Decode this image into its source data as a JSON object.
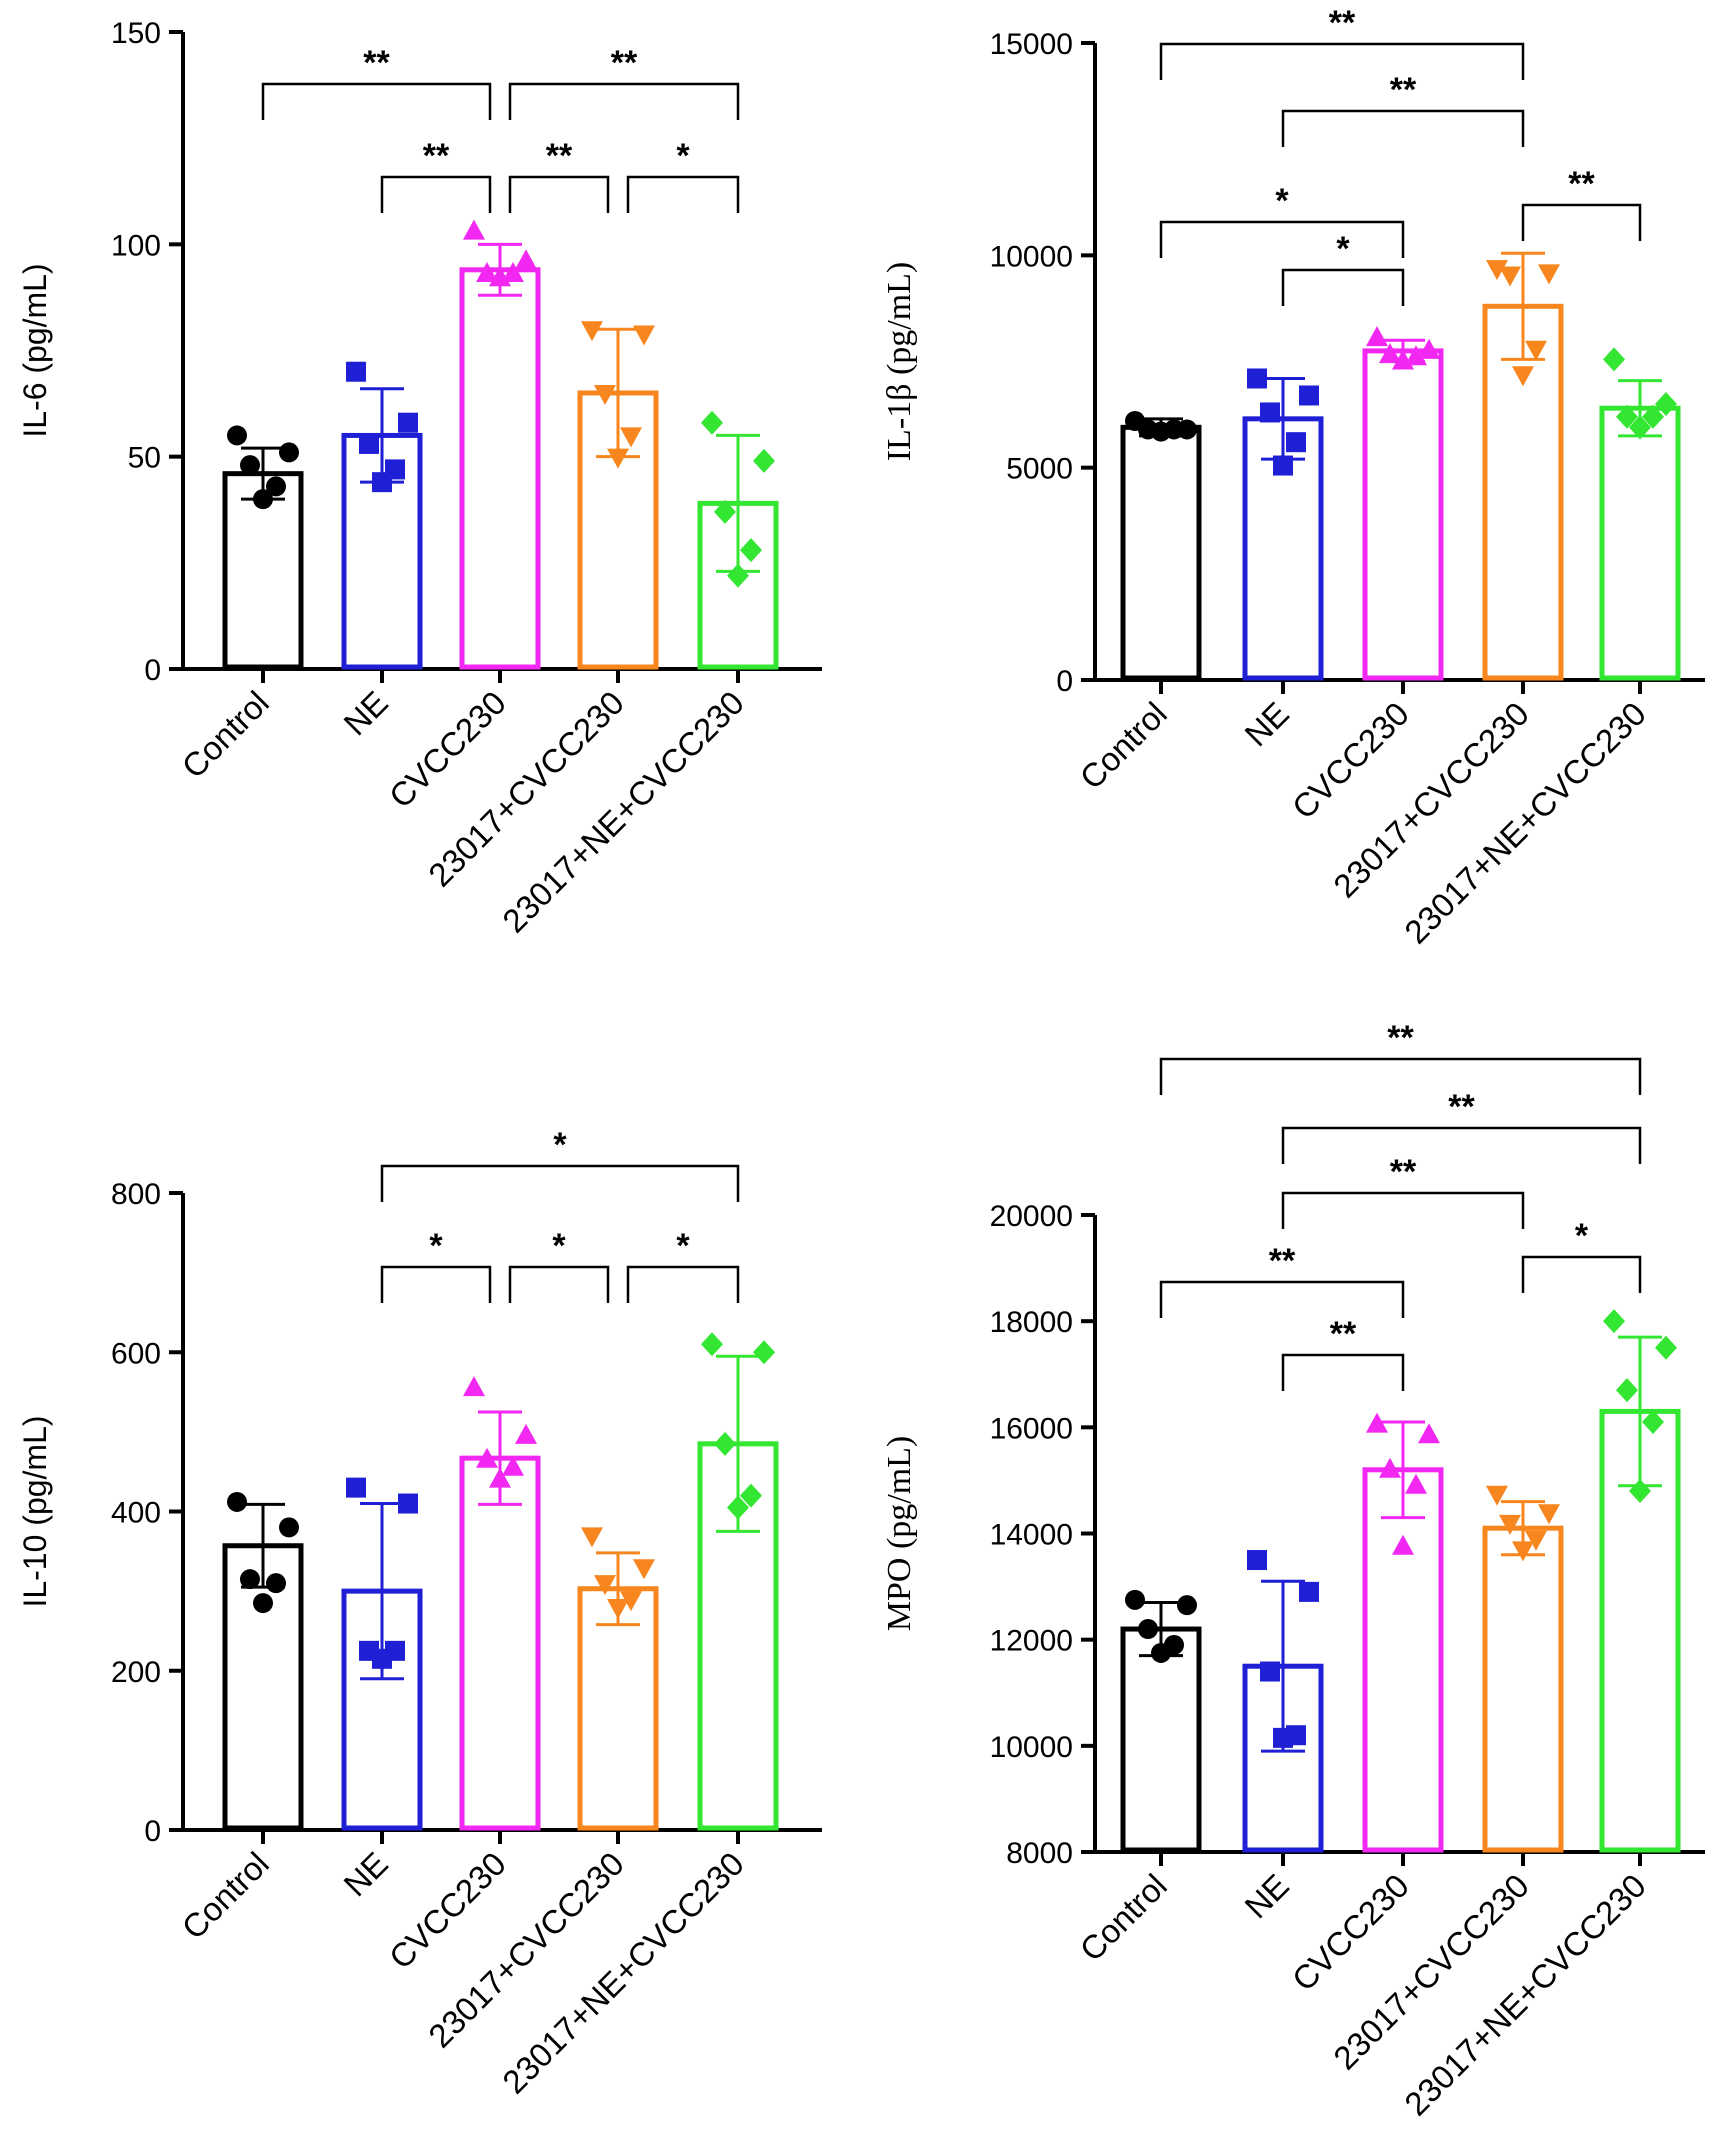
{
  "colors": {
    "Control": "#000000",
    "NE": "#1f1fd6",
    "CVCC230": "#f227f2",
    "23017+CVCC230": "#f7861e",
    "23017+NE+CVCC230": "#32e632"
  },
  "chart_data": [
    {
      "type": "bar",
      "id": "il6",
      "ylabel": "IL-6 (pg/mL)",
      "ylim": [
        0,
        150
      ],
      "yticks": [
        0,
        50,
        100,
        150
      ],
      "categories": [
        "Control",
        "NE",
        "CVCC230",
        "23017+CVCC230",
        "23017+NE+CVCC230"
      ],
      "markers": [
        "circle",
        "square",
        "triangle-up",
        "triangle-down",
        "diamond"
      ],
      "values": [
        46,
        55,
        94,
        65,
        39
      ],
      "sd": [
        6,
        11,
        6,
        15,
        16
      ],
      "points": [
        [
          55,
          51,
          48,
          43,
          40
        ],
        [
          70,
          58,
          53,
          47,
          44
        ],
        [
          103,
          96,
          93,
          93,
          92
        ],
        [
          80,
          79,
          65,
          55,
          50
        ],
        [
          58,
          49,
          37,
          28,
          22
        ]
      ],
      "significance": [
        {
          "from": 0,
          "to": 2,
          "label": "**"
        },
        {
          "from": 2,
          "to": 4,
          "label": "**"
        },
        {
          "from": 1,
          "to": 2,
          "label": "**"
        },
        {
          "from": 2,
          "to": 3,
          "label": "**"
        },
        {
          "from": 3,
          "to": 4,
          "label": "*"
        }
      ]
    },
    {
      "type": "bar",
      "id": "il1b",
      "ylabel": "IL-1β (pg/mL)",
      "ylim": [
        0,
        15000
      ],
      "yticks": [
        0,
        5000,
        10000,
        15000
      ],
      "categories": [
        "Control",
        "NE",
        "CVCC230",
        "23017+CVCC230",
        "23017+NE+CVCC230"
      ],
      "markers": [
        "circle",
        "square",
        "triangle-up",
        "triangle-down",
        "diamond"
      ],
      "values": [
        5950,
        6150,
        7750,
        8800,
        6400
      ],
      "sd": [
        200,
        950,
        250,
        1250,
        650
      ],
      "points": [
        [
          6100,
          5900,
          5900,
          5900,
          5850
        ],
        [
          7100,
          6700,
          6300,
          5600,
          5050
        ],
        [
          8050,
          7750,
          7650,
          7600,
          7500
        ],
        [
          9700,
          9600,
          9550,
          7800,
          7200
        ],
        [
          7550,
          6500,
          6200,
          6200,
          5950
        ]
      ],
      "significance": [
        {
          "from": 0,
          "to": 3,
          "label": "**"
        },
        {
          "from": 1,
          "to": 3,
          "label": "**"
        },
        {
          "from": 0,
          "to": 2,
          "label": "*"
        },
        {
          "from": 1,
          "to": 2,
          "label": "*"
        },
        {
          "from": 3,
          "to": 4,
          "label": "**"
        }
      ]
    },
    {
      "type": "bar",
      "id": "il10",
      "ylabel": "IL-10 (pg/mL)",
      "ylim": [
        0,
        800
      ],
      "yticks": [
        0,
        200,
        400,
        600,
        800
      ],
      "categories": [
        "Control",
        "NE",
        "CVCC230",
        "23017+CVCC230",
        "23017+NE+CVCC230"
      ],
      "markers": [
        "circle",
        "square",
        "triangle-up",
        "triangle-down",
        "diamond"
      ],
      "values": [
        357,
        300,
        467,
        303,
        485
      ],
      "sd": [
        52,
        110,
        58,
        45,
        110
      ],
      "points": [
        [
          412,
          380,
          315,
          310,
          285
        ],
        [
          430,
          410,
          225,
          225,
          215
        ],
        [
          555,
          495,
          465,
          455,
          440
        ],
        [
          370,
          330,
          310,
          290,
          280
        ],
        [
          610,
          600,
          485,
          420,
          405
        ]
      ],
      "significance": [
        {
          "from": 1,
          "to": 4,
          "label": "*"
        },
        {
          "from": 1,
          "to": 2,
          "label": "*"
        },
        {
          "from": 2,
          "to": 3,
          "label": "*"
        },
        {
          "from": 3,
          "to": 4,
          "label": "*"
        }
      ]
    },
    {
      "type": "bar",
      "id": "mpo",
      "ylabel": "MPO (pg/mL)",
      "ylim": [
        8000,
        20000
      ],
      "yticks": [
        8000,
        10000,
        12000,
        14000,
        16000,
        18000,
        20000
      ],
      "categories": [
        "Control",
        "NE",
        "CVCC230",
        "23017+CVCC230",
        "23017+NE+CVCC230"
      ],
      "markers": [
        "circle",
        "square",
        "triangle-up",
        "triangle-down",
        "diamond"
      ],
      "values": [
        12200,
        11500,
        15200,
        14100,
        16300
      ],
      "sd": [
        500,
        1600,
        900,
        500,
        1400
      ],
      "points": [
        [
          12750,
          12650,
          12200,
          11900,
          11750
        ],
        [
          13500,
          12900,
          11400,
          10200,
          10150
        ],
        [
          16050,
          15850,
          15200,
          14900,
          13750
        ],
        [
          14750,
          14400,
          14200,
          13900,
          13700
        ],
        [
          18000,
          17500,
          16700,
          16100,
          14800
        ]
      ],
      "significance": [
        {
          "from": 0,
          "to": 4,
          "label": "**"
        },
        {
          "from": 1,
          "to": 4,
          "label": "**"
        },
        {
          "from": 1,
          "to": 3,
          "label": "**"
        },
        {
          "from": 0,
          "to": 2,
          "label": "**"
        },
        {
          "from": 1,
          "to": 2,
          "label": "**"
        },
        {
          "from": 3,
          "to": 4,
          "label": "*"
        }
      ]
    }
  ]
}
